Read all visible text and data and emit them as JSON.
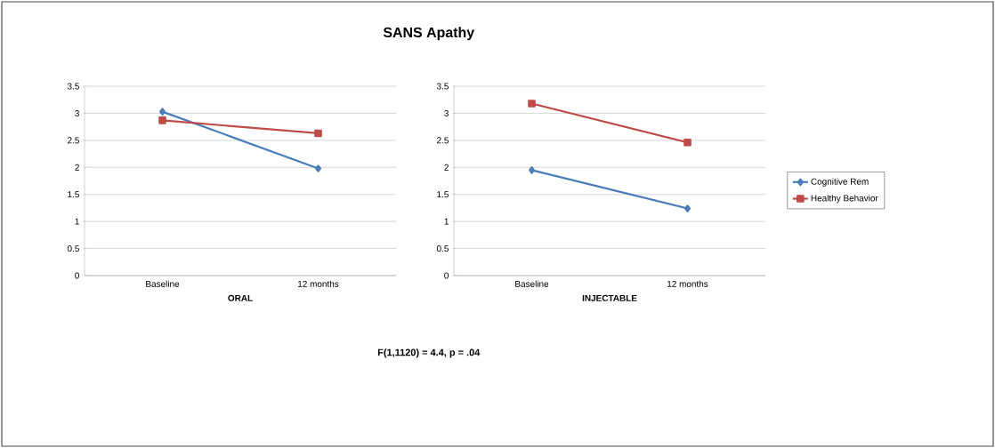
{
  "chart_data": [
    {
      "type": "line",
      "title": "SANS Apathy",
      "xlabel": "ORAL",
      "categories": [
        "Baseline",
        "12 months"
      ],
      "series": [
        {
          "color": "#4a7ebb",
          "marker": "diamond",
          "values": [
            3.03,
            1.98
          ]
        },
        {
          "color": "#be4b48",
          "marker": "square",
          "values": [
            2.87,
            2.63
          ]
        }
      ],
      "ylim": [
        0,
        3.5
      ],
      "yticks": [
        0,
        0.5,
        1,
        1.5,
        2,
        2.5,
        3,
        3.5
      ],
      "grid": "y",
      "annotations": [
        "F(1,1120) = 4.4, p = .04"
      ]
    },
    {
      "type": "line",
      "xlabel": "INJECTABLE",
      "categories": [
        "Baseline",
        "12 months"
      ],
      "series": [
        {
          "name": "Cognitive Rem",
          "color": "#4a7ebb",
          "marker": "diamond",
          "values": [
            1.95,
            1.24
          ]
        },
        {
          "name": "Healthy Behavior",
          "color": "#be4b48",
          "marker": "square",
          "values": [
            3.18,
            2.46
          ]
        }
      ],
      "ylim": [
        0,
        3.5
      ],
      "yticks": [
        0,
        0.5,
        1,
        1.5,
        2,
        2.5,
        3,
        3.5
      ],
      "grid": "y",
      "legend": "right"
    }
  ]
}
